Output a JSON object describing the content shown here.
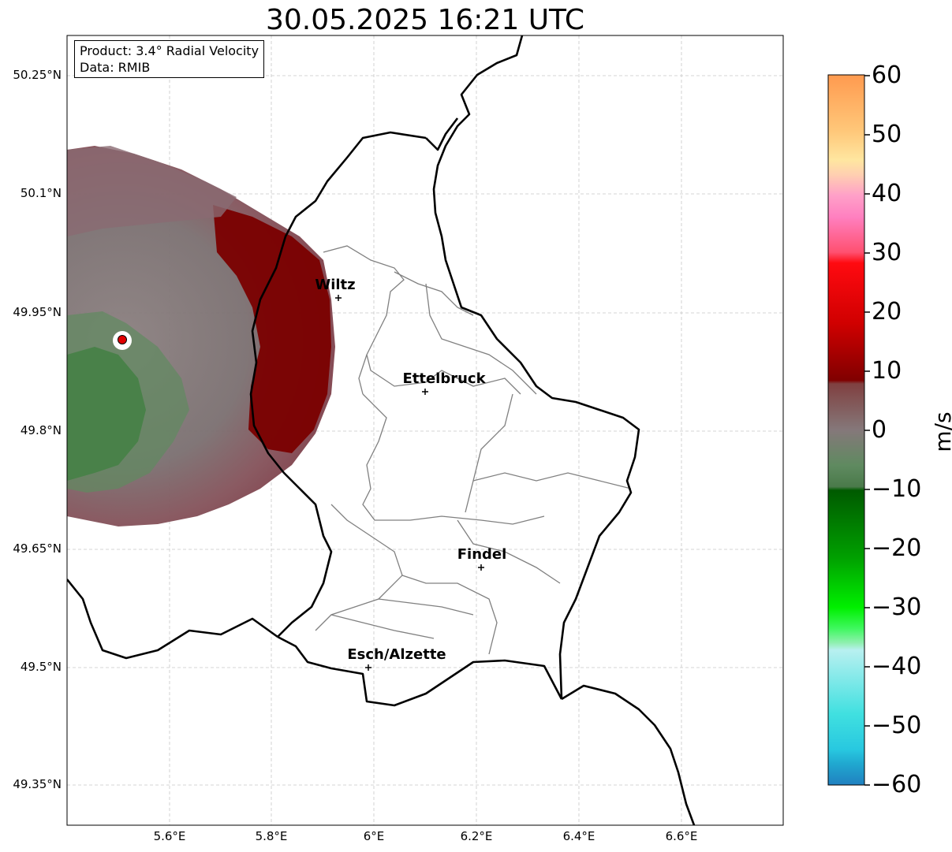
{
  "title": "30.05.2025 16:21 UTC",
  "info": {
    "product": "Product: 3.4° Radial Velocity",
    "data": "Data: RMIB"
  },
  "axes": {
    "lat_labels": [
      "50.25°N",
      "50.1°N",
      "49.95°N",
      "49.8°N",
      "49.65°N",
      "49.5°N",
      "49.35°N"
    ],
    "lon_labels": [
      "5.6°E",
      "5.8°E",
      "6°E",
      "6.2°E",
      "6.4°E",
      "6.6°E"
    ]
  },
  "towns": [
    {
      "name": "Wiltz",
      "lon": 5.93,
      "lat": 49.966
    },
    {
      "name": "Ettelbruck",
      "lon": 6.1,
      "lat": 49.847
    },
    {
      "name": "Findel",
      "lon": 6.21,
      "lat": 49.626
    },
    {
      "name": "Esch/Alzette",
      "lon": 5.99,
      "lat": 49.5
    }
  ],
  "radar_site": {
    "lon": 5.505,
    "lat": 49.914
  },
  "colorbar": {
    "unit": "m/s",
    "ticks": [
      "60",
      "50",
      "40",
      "30",
      "20",
      "10",
      "0",
      "−10",
      "−20",
      "−30",
      "−40",
      "−50",
      "−60"
    ],
    "range": [
      -60,
      60
    ]
  },
  "colors": {
    "border": "#000000",
    "district": "#808080",
    "grid": "#c8c8c8",
    "site_marker": "#e00000"
  }
}
